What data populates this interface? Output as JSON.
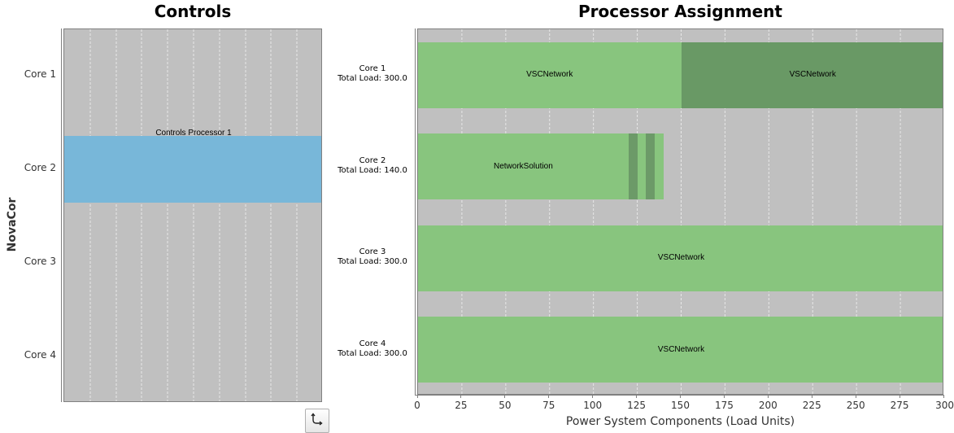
{
  "controls": {
    "title": "Controls",
    "side_label": "NovaCor",
    "cores": [
      "Core 1",
      "Core 2",
      "Core 3",
      "Core 4"
    ],
    "processor_label": "Controls Processor 1",
    "processor_core_index": 1,
    "processor_color": "#78b7d9"
  },
  "assignment": {
    "title": "Processor Assignment",
    "xlabel": "Power System Components (Load Units)",
    "xticks": [
      0,
      25,
      50,
      75,
      100,
      125,
      150,
      175,
      200,
      225,
      250,
      275,
      300
    ],
    "xlim": [
      0,
      300
    ],
    "cores": [
      {
        "name": "Core 1",
        "load_text": "Total Load: 300.0"
      },
      {
        "name": "Core 2",
        "load_text": "Total Load: 140.0"
      },
      {
        "name": "Core 3",
        "load_text": "Total Load: 300.0"
      },
      {
        "name": "Core 4",
        "load_text": "Total Load: 300.0"
      }
    ],
    "segments": [
      {
        "core": 0,
        "start": 0,
        "end": 150,
        "label": "VSCNetwork",
        "color": "#88c57e"
      },
      {
        "core": 0,
        "start": 150,
        "end": 300,
        "label": "VSCNetwork",
        "color": "#699965"
      },
      {
        "core": 1,
        "start": 0,
        "end": 120,
        "label": "NetworkSolution",
        "color": "#88c57e"
      },
      {
        "core": 1,
        "start": 120,
        "end": 125,
        "label": "",
        "color": "#6c9a68"
      },
      {
        "core": 1,
        "start": 125,
        "end": 130,
        "label": "",
        "color": "#88c57e"
      },
      {
        "core": 1,
        "start": 130,
        "end": 135,
        "label": "",
        "color": "#6c9a68"
      },
      {
        "core": 1,
        "start": 135,
        "end": 140,
        "label": "",
        "color": "#88c57e"
      },
      {
        "core": 2,
        "start": 0,
        "end": 300,
        "label": "VSCNetwork",
        "color": "#88c57e"
      },
      {
        "core": 3,
        "start": 0,
        "end": 300,
        "label": "VSCNetwork",
        "color": "#88c57e"
      }
    ]
  },
  "colors": {
    "plot_background": "#c0c0c0",
    "gridline": "#e8e8e8"
  },
  "swap_button": {
    "icon": "swap-arrows-icon"
  }
}
